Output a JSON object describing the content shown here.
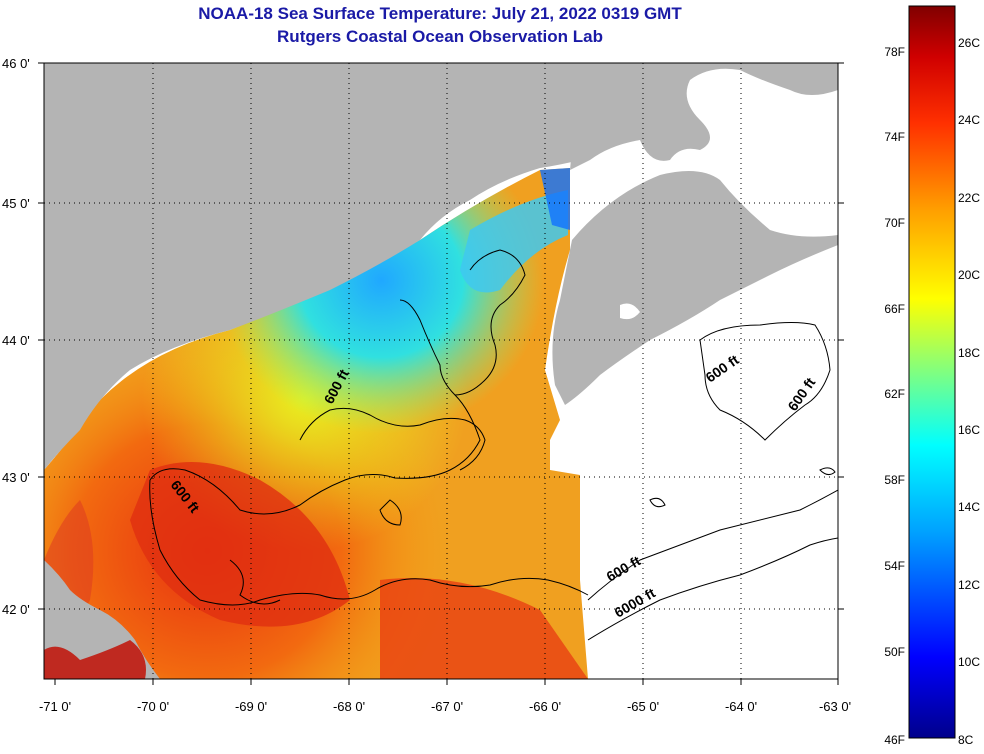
{
  "header": {
    "title": "NOAA-18 Sea Surface Temperature:  July 21, 2022 0319 GMT",
    "subtitle": "Rutgers Coastal Ocean Observation Lab"
  },
  "map": {
    "lat_ticks": [
      "46 0'",
      "45 0'",
      "44 0'",
      "43 0'",
      "42 0'"
    ],
    "lon_ticks": [
      "-71 0'",
      "-70 0'",
      "-69 0'",
      "-68 0'",
      "-67 0'",
      "-66 0'",
      "-65 0'",
      "-64 0'",
      "-63 0'"
    ],
    "contour_labels": [
      "600 ft",
      "600 ft",
      "600 ft",
      "600 ft",
      "600 ft",
      "6000 ft"
    ],
    "colors": {
      "land": "#b4b4b4",
      "no_data": "#ffffff",
      "gridline": "#000000"
    }
  },
  "colorbar": {
    "fahrenheit": [
      "78F",
      "74F",
      "70F",
      "66F",
      "62F",
      "58F",
      "54F",
      "50F",
      "46F"
    ],
    "celsius": [
      "26C",
      "24C",
      "22C",
      "20C",
      "18C",
      "16C",
      "14C",
      "12C",
      "10C",
      "8C"
    ],
    "stops": [
      "#00008b",
      "#0000ff",
      "#00a0ff",
      "#00ffff",
      "#80ff80",
      "#ffff00",
      "#ffa000",
      "#ff3000",
      "#d00000",
      "#800000"
    ]
  }
}
